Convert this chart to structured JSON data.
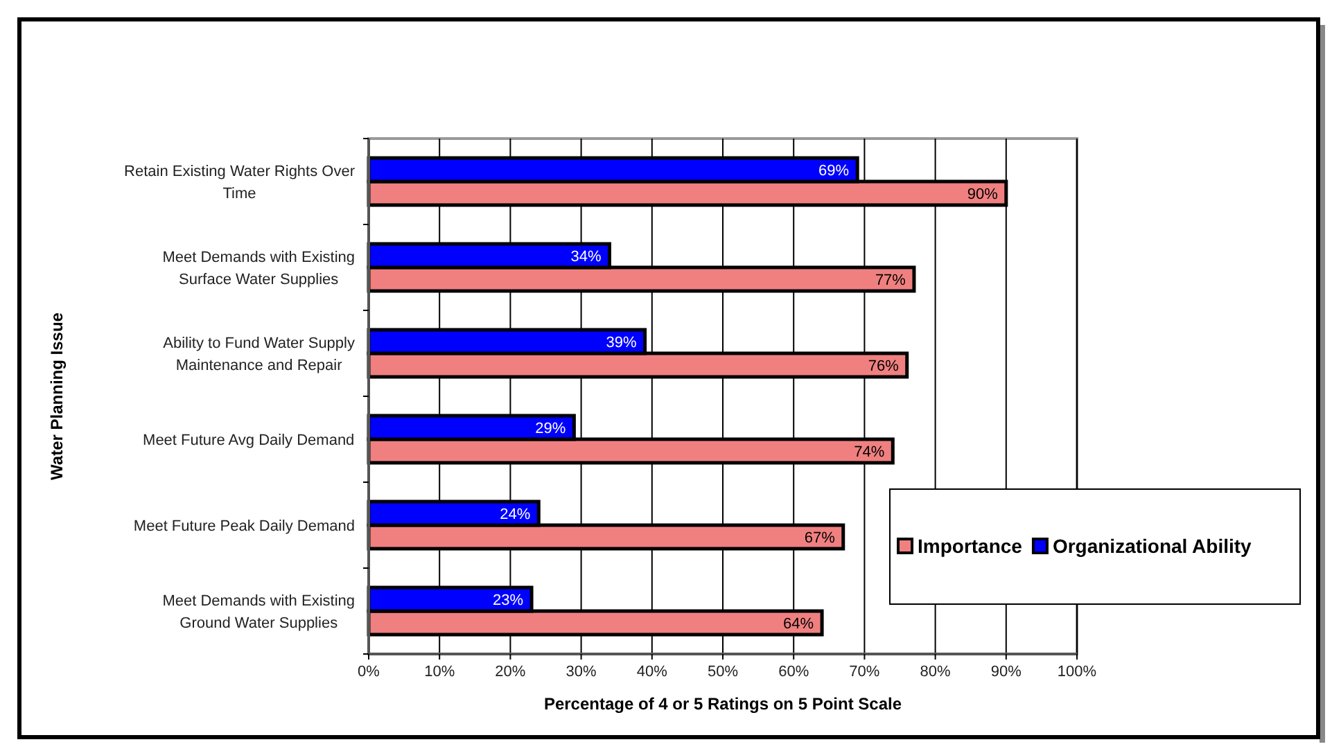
{
  "chart_data": {
    "type": "bar",
    "orientation": "horizontal",
    "xlabel": "Percentage of 4 or 5 Ratings on 5 Point Scale",
    "ylabel": "Water Planning Issue",
    "categories": [
      "Retain Existing Water Rights Over Time",
      "Meet Demands with Existing Surface Water Supplies",
      "Ability to Fund Water Supply Maintenance and Repair",
      "Meet Future Avg Daily Demand",
      "Meet Future Peak Daily Demand",
      "Meet Demands with Existing Ground Water Supplies"
    ],
    "series": [
      {
        "name": "Importance",
        "color": "#f08080",
        "values": [
          90,
          77,
          76,
          74,
          67,
          64
        ],
        "value_labels": [
          "90%",
          "77%",
          "76%",
          "74%",
          "67%",
          "64%"
        ]
      },
      {
        "name": "Organizational Ability",
        "color": "#0000ff",
        "values": [
          69,
          34,
          39,
          29,
          24,
          23
        ],
        "value_labels": [
          "69%",
          "34%",
          "39%",
          "29%",
          "24%",
          "23%"
        ]
      }
    ],
    "xlim": [
      0,
      100
    ],
    "xticks": [
      {
        "value": 0,
        "label": "0%"
      },
      {
        "value": 10,
        "label": "10%"
      },
      {
        "value": 20,
        "label": "20%"
      },
      {
        "value": 30,
        "label": "30%"
      },
      {
        "value": 40,
        "label": "40%"
      },
      {
        "value": 50,
        "label": "50%"
      },
      {
        "value": 60,
        "label": "60%"
      },
      {
        "value": 70,
        "label": "70%"
      },
      {
        "value": 80,
        "label": "80%"
      },
      {
        "value": 90,
        "label": "90%"
      },
      {
        "value": 100,
        "label": "100%"
      }
    ],
    "grid": "x",
    "legend": "right"
  }
}
